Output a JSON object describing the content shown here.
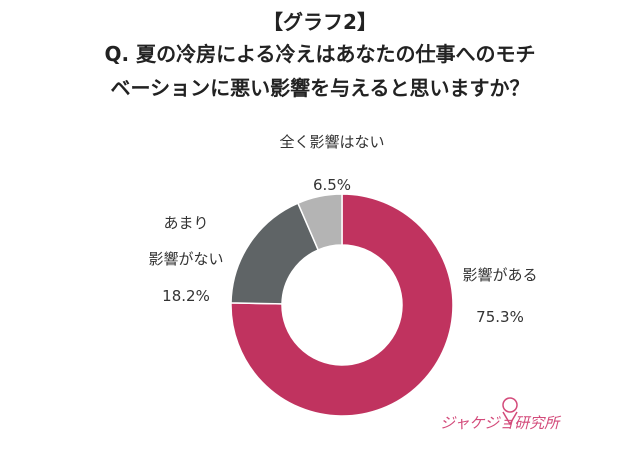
{
  "chart_data": {
    "type": "pie",
    "title": "【グラフ2】",
    "subtitle_line1": "Q. 夏の冷房による冷えはあなたの仕事へのモチ",
    "subtitle_line2": "ベーションに悪い影響を与えると思いますか？",
    "slices": [
      {
        "label": "影響がある",
        "value": 75.3,
        "value_label": "75.3%",
        "color": "#c0335f"
      },
      {
        "label_lines": [
          "あまり",
          "影響がない"
        ],
        "value": 18.2,
        "value_label": "18.2%",
        "color": "#5f6466"
      },
      {
        "label": "全く影響はない",
        "value": 6.5,
        "value_label": "6.5%",
        "color": "#b4b4b4"
      }
    ]
  },
  "logo": {
    "text": "ジャケジョ研究所"
  }
}
